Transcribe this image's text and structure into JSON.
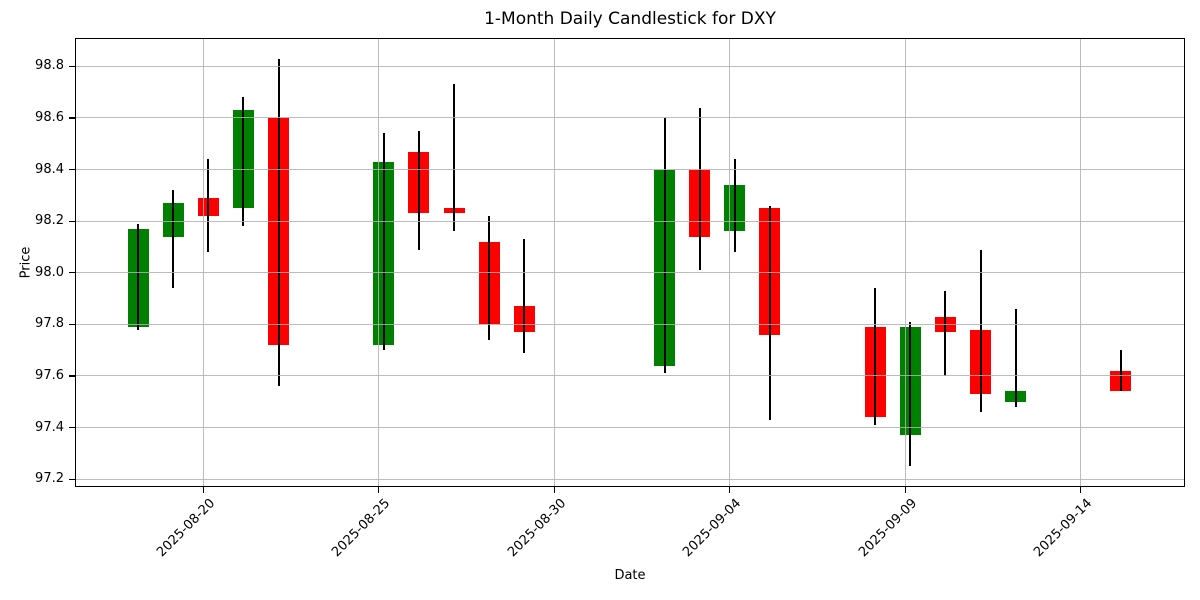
{
  "chart_data": {
    "type": "candlestick",
    "title": "1-Month Daily Candlestick for DXY",
    "xlabel": "Date",
    "ylabel": "Price",
    "symbol": "DXY",
    "grid": true,
    "ylim": [
      97.17,
      98.91
    ],
    "y_tick_labels": [
      "97.2",
      "97.4",
      "97.6",
      "97.8",
      "98.0",
      "98.2",
      "98.4",
      "98.6",
      "98.8"
    ],
    "y_tick_values": [
      97.2,
      97.4,
      97.6,
      97.8,
      98.0,
      98.2,
      98.4,
      98.6,
      98.8
    ],
    "x_tick_labels": [
      "2025-08-20",
      "2025-08-25",
      "2025-08-30",
      "2025-09-04",
      "2025-09-09",
      "2025-09-14"
    ],
    "colors": {
      "up": "#008000",
      "down": "#ff0000",
      "wick": "#000000",
      "grid": "#b0b0b0",
      "text": "#000000",
      "background": "#ffffff"
    },
    "ohlc": [
      {
        "date": "2025-08-18",
        "open": 97.79,
        "high": 98.19,
        "low": 97.78,
        "close": 98.17
      },
      {
        "date": "2025-08-19",
        "open": 98.14,
        "high": 98.32,
        "low": 97.94,
        "close": 98.27
      },
      {
        "date": "2025-08-20",
        "open": 98.29,
        "high": 98.44,
        "low": 98.08,
        "close": 98.22
      },
      {
        "date": "2025-08-21",
        "open": 98.25,
        "high": 98.68,
        "low": 98.18,
        "close": 98.63
      },
      {
        "date": "2025-08-22",
        "open": 98.6,
        "high": 98.83,
        "low": 97.56,
        "close": 97.72
      },
      {
        "date": "2025-08-25",
        "open": 97.72,
        "high": 98.54,
        "low": 97.7,
        "close": 98.43
      },
      {
        "date": "2025-08-26",
        "open": 98.47,
        "high": 98.55,
        "low": 98.09,
        "close": 98.23
      },
      {
        "date": "2025-08-27",
        "open": 98.25,
        "high": 98.73,
        "low": 98.16,
        "close": 98.23
      },
      {
        "date": "2025-08-28",
        "open": 98.12,
        "high": 98.22,
        "low": 97.74,
        "close": 97.8
      },
      {
        "date": "2025-08-29",
        "open": 97.87,
        "high": 98.13,
        "low": 97.69,
        "close": 97.77
      },
      {
        "date": "2025-09-02",
        "open": 97.64,
        "high": 98.6,
        "low": 97.61,
        "close": 98.4
      },
      {
        "date": "2025-09-03",
        "open": 98.4,
        "high": 98.64,
        "low": 98.01,
        "close": 98.14
      },
      {
        "date": "2025-09-04",
        "open": 98.16,
        "high": 98.44,
        "low": 98.08,
        "close": 98.34
      },
      {
        "date": "2025-09-05",
        "open": 98.25,
        "high": 98.26,
        "low": 97.43,
        "close": 97.76
      },
      {
        "date": "2025-09-08",
        "open": 97.79,
        "high": 97.94,
        "low": 97.41,
        "close": 97.44
      },
      {
        "date": "2025-09-09",
        "open": 97.37,
        "high": 97.81,
        "low": 97.25,
        "close": 97.79
      },
      {
        "date": "2025-09-10",
        "open": 97.83,
        "high": 97.93,
        "low": 97.6,
        "close": 97.77
      },
      {
        "date": "2025-09-11",
        "open": 97.78,
        "high": 98.09,
        "low": 97.46,
        "close": 97.53
      },
      {
        "date": "2025-09-12",
        "open": 97.5,
        "high": 97.86,
        "low": 97.48,
        "close": 97.54
      },
      {
        "date": "2025-09-15",
        "open": 97.62,
        "high": 97.7,
        "low": 97.54,
        "close": 97.54
      }
    ]
  }
}
